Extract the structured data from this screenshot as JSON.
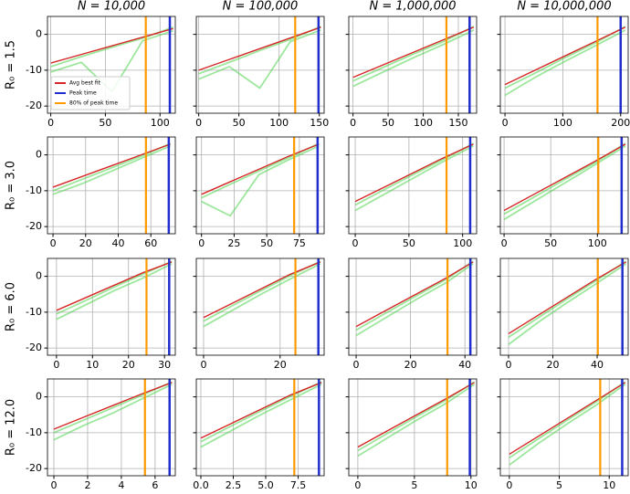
{
  "chart_data": {
    "type": "line",
    "column_titles": [
      "N = 10,000",
      "N = 100,000",
      "N = 1,000,000",
      "N = 10,000,000"
    ],
    "row_labels": [
      "R₀ = 1.5",
      "R₀ = 3.0",
      "R₀ = 6.0",
      "R₀ = 12.0"
    ],
    "legend": [
      {
        "name": "Avg best fit",
        "color": "#d62728"
      },
      {
        "name": "Peak time",
        "color": "#1f2ecc"
      },
      {
        "name": "80% of peak time",
        "color": "#ff9900"
      }
    ],
    "trial_color": "#4cd44c",
    "grid": true,
    "ylim": [
      -22,
      5
    ],
    "yticks": [
      0,
      -10,
      -20
    ],
    "panels": [
      {
        "xlim": [
          -3,
          114
        ],
        "xticks": [
          0,
          50,
          100
        ],
        "peak_time": 109,
        "peak_80": 87,
        "x": [
          0,
          28,
          56,
          84,
          112
        ],
        "fit": [
          -8,
          -5.6,
          -3.2,
          -0.8,
          1.6
        ],
        "trials": [
          [
            -9,
            -6.2,
            -3.6,
            -1.1,
            2
          ],
          [
            -10.5,
            -7.8,
            -16,
            -1.8,
            1
          ]
        ]
      },
      {
        "xlim": [
          -3,
          156
        ],
        "xticks": [
          0,
          50,
          100,
          150
        ],
        "peak_time": 149,
        "peak_80": 120,
        "x": [
          0,
          38,
          76,
          114,
          152
        ],
        "fit": [
          -10,
          -7,
          -4,
          -1,
          2
        ],
        "trials": [
          [
            -11,
            -7.8,
            -4.5,
            -1.4,
            2.2
          ],
          [
            -12.5,
            -9,
            -15,
            -2,
            1.2
          ]
        ]
      },
      {
        "xlim": [
          -6,
          176
        ],
        "xticks": [
          0,
          50,
          100,
          150
        ],
        "peak_time": 166,
        "peak_80": 133,
        "x": [
          0,
          43,
          86,
          129,
          172
        ],
        "fit": [
          -12,
          -8.5,
          -5,
          -1.5,
          2
        ],
        "trials": [
          [
            -13,
            -9.2,
            -5.5,
            -2,
            2.2
          ],
          [
            -14.5,
            -10.5,
            -6.5,
            -2.8,
            1.2
          ]
        ]
      },
      {
        "xlim": [
          -8,
          213
        ],
        "xticks": [
          0,
          100,
          200
        ],
        "peak_time": 200,
        "peak_80": 160,
        "x": [
          0,
          52,
          104,
          156,
          208
        ],
        "fit": [
          -14,
          -10,
          -6,
          -2,
          2
        ],
        "trials": [
          [
            -15,
            -10.8,
            -6.5,
            -2.4,
            2.2
          ],
          [
            -17,
            -12,
            -7.5,
            -3.2,
            1.2
          ]
        ]
      },
      {
        "xlim": [
          -3.4,
          75
        ],
        "xticks": [
          0,
          20,
          40,
          60
        ],
        "peak_time": 71,
        "peak_80": 57,
        "x": [
          0,
          18,
          36,
          54,
          72
        ],
        "fit": [
          -9,
          -6,
          -3,
          0,
          3
        ],
        "trials": [
          [
            -10,
            -6.8,
            -3.6,
            -0.4,
            3.2
          ],
          [
            -11,
            -8,
            -4.5,
            -1,
            2.5
          ]
        ]
      },
      {
        "xlim": [
          -4,
          94
        ],
        "xticks": [
          0,
          25,
          50,
          75
        ],
        "peak_time": 89,
        "peak_80": 71,
        "x": [
          0,
          22,
          44,
          66,
          90
        ],
        "fit": [
          -11,
          -7.5,
          -4,
          -0.5,
          3
        ],
        "trials": [
          [
            -12,
            -8.2,
            -4.5,
            -0.9,
            3.2
          ],
          [
            -13,
            -17,
            -5.5,
            -1.5,
            2.5
          ]
        ]
      },
      {
        "xlim": [
          -6,
          113
        ],
        "xticks": [
          0,
          50,
          100
        ],
        "peak_time": 107,
        "peak_80": 85,
        "x": [
          0,
          27,
          54,
          81,
          110
        ],
        "fit": [
          -13,
          -9,
          -5,
          -1,
          3
        ],
        "trials": [
          [
            -14,
            -9.7,
            -5.5,
            -1.4,
            3.2
          ],
          [
            -15.5,
            -11,
            -6.5,
            -2,
            2.5
          ]
        ]
      },
      {
        "xlim": [
          -4,
          133
        ],
        "xticks": [
          0,
          50,
          100
        ],
        "peak_time": 126,
        "peak_80": 101,
        "x": [
          0,
          32,
          64,
          96,
          130
        ],
        "fit": [
          -15.5,
          -11,
          -6.5,
          -2,
          3
        ],
        "trials": [
          [
            -16.5,
            -11.8,
            -7,
            -2.4,
            3.2
          ],
          [
            -18,
            -13,
            -8,
            -3,
            2.5
          ]
        ]
      },
      {
        "xlim": [
          -2.5,
          33
        ],
        "xticks": [
          0,
          10,
          20,
          30
        ],
        "peak_time": 31.3,
        "peak_80": 25,
        "x": [
          0,
          8,
          16,
          24,
          32
        ],
        "fit": [
          -9.5,
          -6,
          -2.5,
          1,
          4
        ],
        "trials": [
          [
            -10.5,
            -6.8,
            -3,
            0.6,
            4.2
          ],
          [
            -12,
            -8,
            -4,
            -0.5,
            3.5
          ]
        ]
      },
      {
        "xlim": [
          -1.9,
          31.5
        ],
        "xticks": [
          0,
          20
        ],
        "peak_time": 30,
        "peak_80": 24,
        "x": [
          0,
          7.5,
          15,
          22.5,
          30.5
        ],
        "fit": [
          -11.5,
          -7.5,
          -3.5,
          0.5,
          4
        ],
        "trials": [
          [
            -12.5,
            -8.2,
            -4,
            0.1,
            4.2
          ],
          [
            -14,
            -9.5,
            -5,
            -0.8,
            3.5
          ]
        ]
      },
      {
        "xlim": [
          -2.7,
          44.3
        ],
        "xticks": [
          0,
          20,
          40
        ],
        "peak_time": 42,
        "peak_80": 33.6,
        "x": [
          0,
          11,
          22,
          33,
          43
        ],
        "fit": [
          -14,
          -9.5,
          -5,
          -0.5,
          4
        ],
        "trials": [
          [
            -15,
            -10.2,
            -5.5,
            -0.9,
            4.2
          ],
          [
            -16.5,
            -11.5,
            -6.5,
            -1.8,
            3.5
          ]
        ]
      },
      {
        "xlim": [
          -3.7,
          54
        ],
        "xticks": [
          0,
          20,
          40
        ],
        "peak_time": 51.4,
        "peak_80": 40.3,
        "x": [
          0,
          13,
          26,
          39,
          53
        ],
        "fit": [
          -16,
          -11,
          -6,
          -1,
          4
        ],
        "trials": [
          [
            -17,
            -11.7,
            -6.5,
            -1.4,
            4.2
          ],
          [
            -19,
            -13,
            -7.5,
            -2.3,
            3.5
          ]
        ]
      },
      {
        "xlim": [
          -0.38,
          7.2
        ],
        "xticks": [
          0,
          2,
          4,
          6
        ],
        "peak_time": 6.86,
        "peak_80": 5.4,
        "x": [
          0,
          1.75,
          3.5,
          5.25,
          7
        ],
        "fit": [
          -9,
          -5.7,
          -2.4,
          0.9,
          4
        ],
        "trials": [
          [
            -10,
            -6.5,
            -3,
            0.5,
            4.2
          ],
          [
            -12,
            -8,
            -4.5,
            -0.5,
            3.5
          ]
        ]
      },
      {
        "xlim": [
          -0.35,
          9.5
        ],
        "xticks": [
          {
            "value": 0,
            "label": "0.0"
          },
          {
            "value": 2.5,
            "label": "2.5"
          },
          {
            "value": 5,
            "label": "5.0"
          },
          {
            "value": 7.5,
            "label": "7.5"
          }
        ],
        "peak_time": 9.1,
        "peak_80": 7.2,
        "x": [
          0,
          2.3,
          4.6,
          6.9,
          9.3
        ],
        "fit": [
          -11.5,
          -7.5,
          -3.5,
          0.5,
          4
        ],
        "trials": [
          [
            -12.5,
            -8.2,
            -4,
            0.1,
            4.2
          ],
          [
            -14,
            -9.5,
            -5,
            -0.8,
            3.5
          ]
        ]
      },
      {
        "xlim": [
          -0.8,
          10.5
        ],
        "xticks": [
          0,
          5,
          10
        ],
        "peak_time": 9.9,
        "peak_80": 7.9,
        "x": [
          0,
          2.6,
          5.2,
          7.8,
          10.3
        ],
        "fit": [
          -14,
          -9.5,
          -5,
          -0.5,
          4
        ],
        "trials": [
          [
            -15,
            -10.2,
            -5.5,
            -0.9,
            4.2
          ],
          [
            -16.5,
            -11.5,
            -6.5,
            -1.8,
            3.5
          ]
        ]
      },
      {
        "xlim": [
          -0.9,
          11.9
        ],
        "xticks": [
          0,
          5,
          10
        ],
        "peak_time": 11.3,
        "peak_80": 9.1,
        "x": [
          0,
          2.9,
          5.8,
          8.7,
          11.6
        ],
        "fit": [
          -16,
          -11,
          -6,
          -1,
          4
        ],
        "trials": [
          [
            -17,
            -11.7,
            -6.5,
            -1.4,
            4.2
          ],
          [
            -19,
            -13,
            -7.5,
            -2.3,
            3.5
          ]
        ]
      }
    ]
  }
}
